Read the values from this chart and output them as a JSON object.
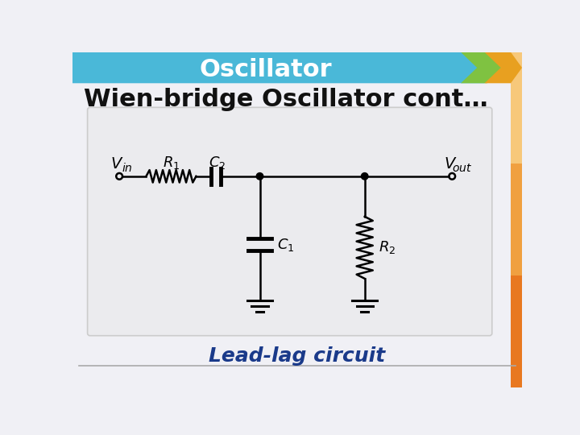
{
  "title": "Oscillator",
  "subtitle": "Wien-bridge Oscillator cont…",
  "caption": "Lead-lag circuit",
  "bg_color": "#f0f0f5",
  "header_color": "#4ab8d8",
  "header_text_color": "#ffffff",
  "circuit_bg": "#ebebee",
  "circuit_border": "#cccccc",
  "line_color": "#000000",
  "caption_color": "#1a3a8a",
  "chevron_green": "#7fc241",
  "chevron_orange": "#e8a020",
  "subtitle_fontsize": 22,
  "caption_fontsize": 18,
  "title_fontsize": 22
}
